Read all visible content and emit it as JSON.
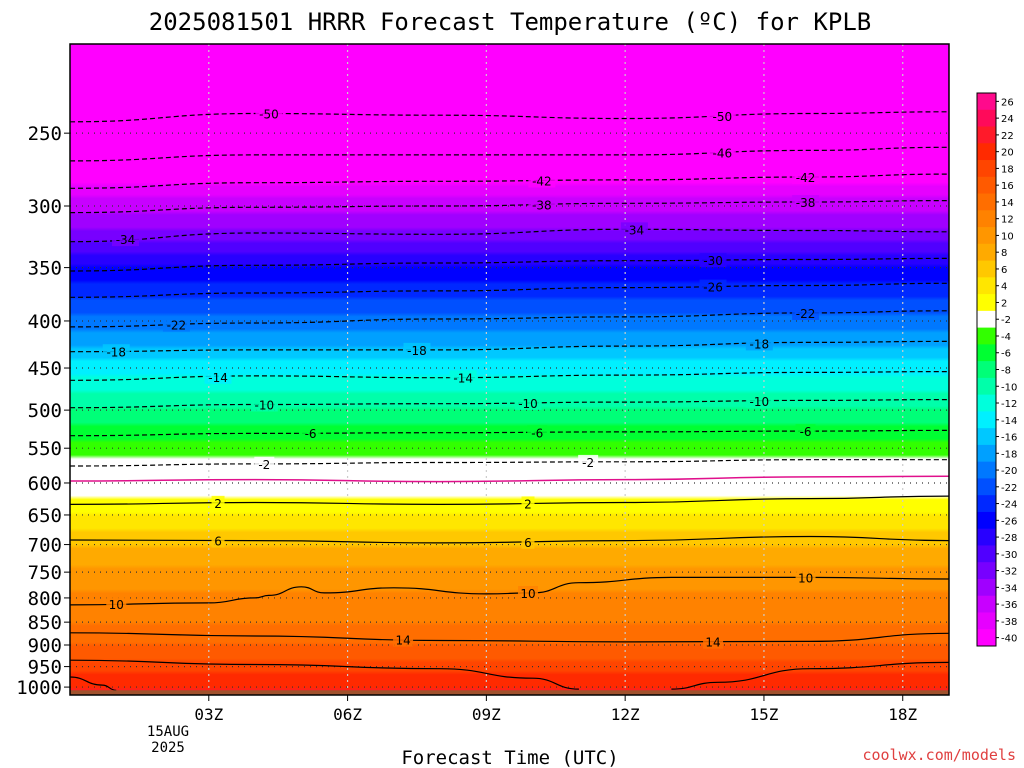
{
  "chart_data": {
    "type": "heatmap",
    "title": "2025081501 HRRR Forecast Temperature (ºC) for KPLB",
    "xlabel": "Forecast Time (UTC)",
    "ylabel": "",
    "credit": "coolwx.com/models",
    "date_lines": [
      "15AUG",
      "2025"
    ],
    "x_range_hours": [
      0,
      19
    ],
    "x_ticks": [
      {
        "hour": 3,
        "label": "03Z"
      },
      {
        "hour": 6,
        "label": "06Z"
      },
      {
        "hour": 9,
        "label": "09Z"
      },
      {
        "hour": 12,
        "label": "12Z"
      },
      {
        "hour": 15,
        "label": "15Z"
      },
      {
        "hour": 18,
        "label": "18Z"
      }
    ],
    "y_axis": {
      "scale": "log",
      "range_hPa": [
        1020,
        200
      ],
      "reversed": true
    },
    "y_ticks": [
      250,
      300,
      350,
      400,
      450,
      500,
      550,
      600,
      650,
      700,
      750,
      800,
      850,
      900,
      950,
      1000
    ],
    "colorbar": {
      "labels": [
        "26",
        "24",
        "22",
        "20",
        "18",
        "16",
        "14",
        "12",
        "10",
        "8",
        "6",
        "4",
        "2",
        "-2",
        "-4",
        "-6",
        "-8",
        "-10",
        "-12",
        "-14",
        "-16",
        "-18",
        "-20",
        "-22",
        "-24",
        "-26",
        "-28",
        "-30",
        "-32",
        "-34",
        "-36",
        "-38",
        "-40"
      ],
      "colors": [
        "#ff0a8c",
        "#ff0a5a",
        "#ff1a2a",
        "#ff2a00",
        "#ff4500",
        "#ff5a00",
        "#ff6e00",
        "#ff8200",
        "#ff9600",
        "#ffaa00",
        "#ffc800",
        "#ffe600",
        "#ffff00",
        "#ffffff",
        "#32ff00",
        "#00ff32",
        "#00ff78",
        "#00ffaa",
        "#00ffdc",
        "#00f0ff",
        "#00c8ff",
        "#00a0ff",
        "#0078ff",
        "#0050ff",
        "#0028ff",
        "#0000ff",
        "#2800ff",
        "#5000ff",
        "#7800ff",
        "#a000ff",
        "#c800ff",
        "#e600ff",
        "#ff00ff"
      ]
    },
    "profile": [
      {
        "p": 200,
        "t": -56
      },
      {
        "p": 250,
        "t": -46
      },
      {
        "p": 300,
        "t": -37
      },
      {
        "p": 350,
        "t": -28
      },
      {
        "p": 400,
        "t": -21
      },
      {
        "p": 450,
        "t": -15
      },
      {
        "p": 500,
        "t": -10
      },
      {
        "p": 550,
        "t": -5
      },
      {
        "p": 600,
        "t": 0
      },
      {
        "p": 650,
        "t": 4
      },
      {
        "p": 700,
        "t": 8
      },
      {
        "p": 750,
        "t": 10.5
      },
      {
        "p": 800,
        "t": 12.5
      },
      {
        "p": 850,
        "t": 14
      },
      {
        "p": 900,
        "t": 16
      },
      {
        "p": 950,
        "t": 19
      },
      {
        "p": 1000,
        "t": 22
      },
      {
        "p": 1020,
        "t": 23
      }
    ],
    "ground_level_hPa": 1008,
    "ground_color": "#a0522d",
    "freezing_line_color": "#e0108c",
    "contours": [
      {
        "label": "-50",
        "dashed": true,
        "points": [
          [
            0,
            243
          ],
          [
            4,
            238
          ],
          [
            8,
            239
          ],
          [
            12,
            241
          ],
          [
            16,
            238
          ],
          [
            19,
            237
          ]
        ],
        "labels_at": [
          4.3,
          14.1
        ]
      },
      {
        "label": "-46",
        "dashed": true,
        "points": [
          [
            0,
            268
          ],
          [
            4,
            264
          ],
          [
            8,
            264
          ],
          [
            12,
            264
          ],
          [
            16,
            261
          ],
          [
            19,
            259
          ]
        ],
        "labels_at": [
          14.1
        ]
      },
      {
        "label": "-42",
        "dashed": true,
        "points": [
          [
            0,
            287
          ],
          [
            4,
            283
          ],
          [
            8,
            282
          ],
          [
            12,
            281
          ],
          [
            16,
            279
          ],
          [
            19,
            277
          ]
        ],
        "labels_at": [
          10.2,
          15.9
        ]
      },
      {
        "label": "-38",
        "dashed": true,
        "points": [
          [
            0,
            305
          ],
          [
            4,
            301
          ],
          [
            8,
            300
          ],
          [
            12,
            298
          ],
          [
            16,
            297
          ],
          [
            19,
            296
          ]
        ],
        "labels_at": [
          10.2,
          15.9
        ]
      },
      {
        "label": "-34",
        "dashed": true,
        "points": [
          [
            0,
            328
          ],
          [
            4,
            321
          ],
          [
            8,
            322
          ],
          [
            12,
            318
          ],
          [
            16,
            319
          ],
          [
            19,
            320
          ]
        ],
        "labels_at": [
          1.2,
          12.2
        ]
      },
      {
        "label": "-30",
        "dashed": true,
        "points": [
          [
            0,
            353
          ],
          [
            4,
            348
          ],
          [
            8,
            346
          ],
          [
            12,
            344
          ],
          [
            16,
            343
          ],
          [
            19,
            342
          ]
        ],
        "labels_at": [
          13.9
        ]
      },
      {
        "label": "-26",
        "dashed": true,
        "points": [
          [
            0,
            377
          ],
          [
            4,
            373
          ],
          [
            8,
            371
          ],
          [
            12,
            368
          ],
          [
            16,
            366
          ],
          [
            19,
            364
          ]
        ],
        "labels_at": [
          13.9
        ]
      },
      {
        "label": "-22",
        "dashed": true,
        "points": [
          [
            0,
            406
          ],
          [
            4,
            402
          ],
          [
            8,
            398
          ],
          [
            12,
            396
          ],
          [
            16,
            392
          ],
          [
            19,
            390
          ]
        ],
        "labels_at": [
          2.3,
          15.9
        ]
      },
      {
        "label": "-18",
        "dashed": true,
        "points": [
          [
            0,
            432
          ],
          [
            4,
            430
          ],
          [
            8,
            430
          ],
          [
            12,
            426
          ],
          [
            16,
            422
          ],
          [
            19,
            421
          ]
        ],
        "labels_at": [
          1.0,
          7.5,
          14.9
        ]
      },
      {
        "label": "-14",
        "dashed": true,
        "points": [
          [
            0,
            464
          ],
          [
            4,
            459
          ],
          [
            8,
            461
          ],
          [
            12,
            458
          ],
          [
            16,
            455
          ],
          [
            19,
            454
          ]
        ],
        "labels_at": [
          3.2,
          8.5
        ]
      },
      {
        "label": "-10",
        "dashed": true,
        "points": [
          [
            0,
            497
          ],
          [
            4,
            493
          ],
          [
            8,
            492
          ],
          [
            12,
            490
          ],
          [
            16,
            488
          ],
          [
            19,
            487
          ]
        ],
        "labels_at": [
          4.2,
          9.9,
          14.9
        ]
      },
      {
        "label": "-6",
        "dashed": true,
        "points": [
          [
            0,
            533
          ],
          [
            4,
            530
          ],
          [
            8,
            529
          ],
          [
            12,
            528
          ],
          [
            16,
            527
          ],
          [
            19,
            526
          ]
        ],
        "labels_at": [
          5.2,
          10.1,
          15.9
        ]
      },
      {
        "label": "-2",
        "dashed": true,
        "points": [
          [
            0,
            575
          ],
          [
            4,
            572
          ],
          [
            8,
            570
          ],
          [
            12,
            569
          ],
          [
            16,
            566
          ],
          [
            19,
            566
          ]
        ],
        "labels_at": [
          4.2,
          11.2
        ]
      },
      {
        "label": "2",
        "dashed": false,
        "points": [
          [
            0,
            633
          ],
          [
            4,
            630
          ],
          [
            8,
            633
          ],
          [
            12,
            630
          ],
          [
            16,
            624
          ],
          [
            19,
            620
          ]
        ],
        "labels_at": [
          3.2,
          9.9
        ]
      },
      {
        "label": "6",
        "dashed": false,
        "points": [
          [
            0,
            692
          ],
          [
            4,
            693
          ],
          [
            8,
            697
          ],
          [
            12,
            693
          ],
          [
            16,
            686
          ],
          [
            19,
            693
          ]
        ],
        "labels_at": [
          3.2,
          9.9
        ]
      },
      {
        "label": "10",
        "dashed": false,
        "points": [
          [
            0,
            814
          ],
          [
            3,
            810
          ],
          [
            4,
            800
          ],
          [
            4.3,
            795
          ],
          [
            5,
            778
          ],
          [
            5.5,
            790
          ],
          [
            7,
            780
          ],
          [
            9,
            792
          ],
          [
            10,
            790
          ],
          [
            11,
            770
          ],
          [
            13,
            760
          ],
          [
            16,
            760
          ],
          [
            19,
            763
          ]
        ],
        "labels_at": [
          1.0,
          9.9,
          15.9
        ]
      },
      {
        "label": "14",
        "dashed": false,
        "points": [
          [
            0,
            873
          ],
          [
            4,
            880
          ],
          [
            8,
            890
          ],
          [
            12,
            893
          ],
          [
            16,
            892
          ],
          [
            19,
            874
          ]
        ],
        "labels_at": [
          7.2,
          13.9
        ]
      },
      {
        "label": "18",
        "dashed": false,
        "points": [
          [
            0,
            935
          ],
          [
            4,
            945
          ],
          [
            8,
            955
          ],
          [
            10,
            978
          ],
          [
            11,
            1005
          ]
        ],
        "labels_at": []
      },
      {
        "label": "18",
        "dashed": false,
        "points": [
          [
            13,
            1005
          ],
          [
            14,
            988
          ],
          [
            16,
            955
          ],
          [
            19,
            940
          ]
        ],
        "labels_at": []
      },
      {
        "label": "22",
        "dashed": false,
        "points": [
          [
            0,
            975
          ],
          [
            0.7,
            995
          ],
          [
            1.0,
            1008
          ]
        ],
        "labels_at": []
      }
    ]
  }
}
